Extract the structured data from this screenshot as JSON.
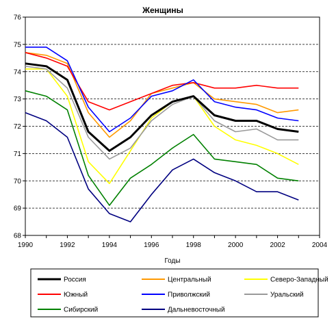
{
  "chart_data": {
    "type": "line",
    "title": "Женщины",
    "xlabel": "Годы",
    "ylabel": "",
    "xlim": [
      1990,
      2004
    ],
    "ylim": [
      68,
      76
    ],
    "x_ticks": [
      "1990",
      "1992",
      "1994",
      "1996",
      "1998",
      "2000",
      "2002",
      "2004"
    ],
    "y_ticks": [
      "68",
      "69",
      "70",
      "71",
      "72",
      "73",
      "74",
      "75",
      "76"
    ],
    "grid": "horizontal-dashed",
    "legend_position": "bottom",
    "x": [
      1990,
      1991,
      1992,
      1993,
      1994,
      1995,
      1996,
      1997,
      1998,
      1999,
      2000,
      2001,
      2002,
      2003
    ],
    "series": [
      {
        "name": "Россия",
        "color": "#000000",
        "width": 3,
        "values": [
          74.3,
          74.2,
          73.7,
          71.8,
          71.1,
          71.6,
          72.4,
          72.9,
          73.1,
          72.4,
          72.2,
          72.2,
          71.9,
          71.8
        ]
      },
      {
        "name": "Центральный",
        "color": "#ff9900",
        "width": 1.6,
        "values": [
          74.7,
          74.6,
          74.3,
          72.5,
          71.6,
          72.2,
          73.2,
          73.4,
          73.6,
          73.0,
          72.9,
          72.8,
          72.5,
          72.6
        ]
      },
      {
        "name": "Северо-Западный",
        "color": "#ffff00",
        "width": 1.6,
        "values": [
          74.1,
          74.1,
          73.1,
          70.7,
          69.9,
          71.1,
          72.3,
          72.9,
          73.1,
          72.0,
          71.5,
          71.3,
          71.0,
          70.6
        ]
      },
      {
        "name": "Южный",
        "color": "#ff0000",
        "width": 1.6,
        "values": [
          74.7,
          74.5,
          74.2,
          72.9,
          72.6,
          72.9,
          73.2,
          73.5,
          73.6,
          73.4,
          73.4,
          73.5,
          73.4,
          73.4
        ]
      },
      {
        "name": "Приволжский",
        "color": "#0000ff",
        "width": 1.6,
        "values": [
          74.9,
          74.9,
          74.4,
          72.7,
          71.8,
          72.3,
          73.1,
          73.3,
          73.7,
          72.9,
          72.7,
          72.6,
          72.3,
          72.2
        ]
      },
      {
        "name": "Уральский",
        "color": "#999999",
        "width": 1.6,
        "values": [
          74.2,
          74.1,
          73.4,
          71.6,
          70.8,
          71.2,
          72.2,
          72.8,
          73.1,
          72.2,
          71.8,
          71.9,
          71.5,
          71.5
        ]
      },
      {
        "name": "Сибирский",
        "color": "#008000",
        "width": 1.6,
        "values": [
          73.3,
          73.1,
          72.6,
          70.2,
          69.1,
          70.1,
          70.6,
          71.2,
          71.7,
          70.8,
          70.7,
          70.6,
          70.1,
          70.0
        ]
      },
      {
        "name": "Дальневосточный",
        "color": "#000080",
        "width": 1.6,
        "values": [
          72.5,
          72.2,
          71.6,
          69.7,
          68.8,
          68.5,
          69.5,
          70.4,
          70.8,
          70.3,
          70.0,
          69.6,
          69.6,
          69.3
        ]
      }
    ]
  }
}
